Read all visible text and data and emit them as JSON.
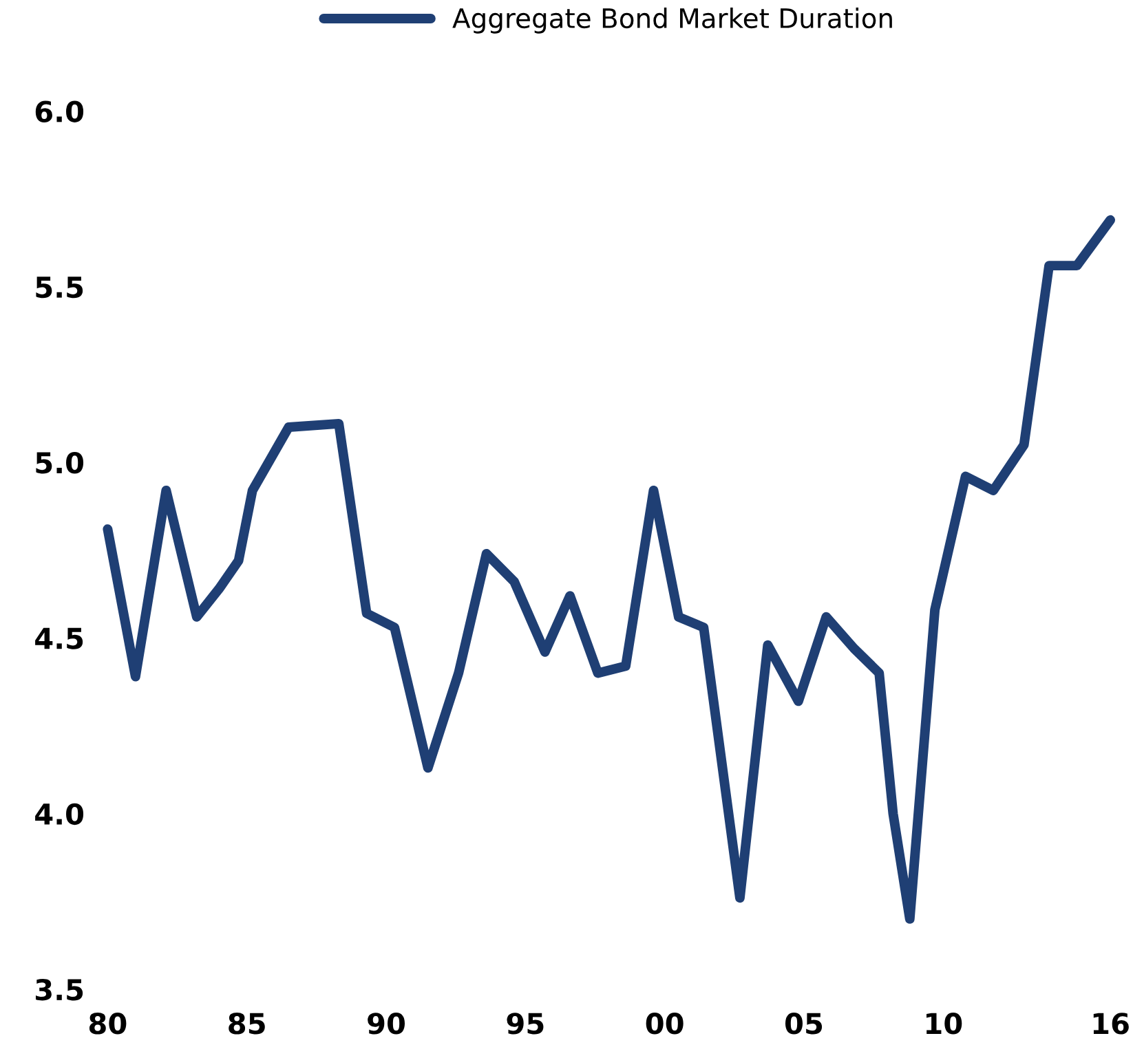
{
  "chart_data": {
    "type": "line",
    "x": [
      1980.0,
      1981.0,
      1982.1,
      1983.2,
      1984.0,
      1984.7,
      1985.2,
      1986.5,
      1988.3,
      1989.3,
      1990.3,
      1991.5,
      1992.6,
      1993.6,
      1994.6,
      1995.7,
      1996.6,
      1997.6,
      1998.6,
      1999.6,
      2000.5,
      2001.4,
      2002.7,
      2003.7,
      2004.8,
      2005.8,
      2006.8,
      2007.7,
      2008.2,
      2008.8,
      2009.7,
      2010.8,
      2011.8,
      2012.9,
      2013.8,
      2014.8,
      2016.0
    ],
    "series": [
      {
        "name": "Aggregate Bond Market Duration",
        "color": "#1f3f74",
        "values": [
          4.81,
          4.39,
          4.92,
          4.56,
          4.64,
          4.72,
          4.92,
          5.1,
          5.11,
          4.57,
          4.53,
          4.13,
          4.4,
          4.74,
          4.66,
          4.46,
          4.62,
          4.4,
          4.42,
          4.92,
          4.56,
          4.53,
          3.76,
          4.48,
          4.32,
          4.56,
          4.47,
          4.4,
          4.0,
          3.7,
          4.58,
          4.96,
          4.92,
          5.05,
          5.56,
          5.56,
          5.69
        ]
      }
    ],
    "xlim": [
      1980,
      2016
    ],
    "xticks": [
      {
        "value": 1980,
        "label": "80"
      },
      {
        "value": 1985,
        "label": "85"
      },
      {
        "value": 1990,
        "label": "90"
      },
      {
        "value": 1995,
        "label": "95"
      },
      {
        "value": 2000,
        "label": "00"
      },
      {
        "value": 2005,
        "label": "05"
      },
      {
        "value": 2010,
        "label": "10"
      },
      {
        "value": 2016,
        "label": "16"
      }
    ],
    "ylim": [
      3.5,
      6.0
    ],
    "yticks": [
      {
        "value": 3.5,
        "label": "3.5"
      },
      {
        "value": 4.0,
        "label": "4.0"
      },
      {
        "value": 4.5,
        "label": "4.5"
      },
      {
        "value": 5.0,
        "label": "5.0"
      },
      {
        "value": 5.5,
        "label": "5.5"
      },
      {
        "value": 6.0,
        "label": "6.0"
      }
    ],
    "grid": false,
    "legend": "top",
    "marker": "none",
    "line_style": "solid"
  }
}
